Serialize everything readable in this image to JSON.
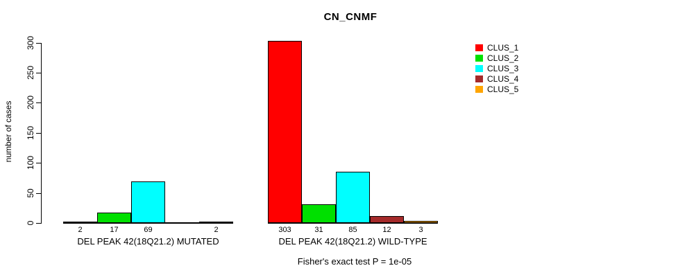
{
  "chart_data": {
    "type": "bar",
    "title": "CN_CNMF",
    "ylabel": "number of cases",
    "ylim": [
      0,
      300
    ],
    "yticks": [
      0,
      50,
      100,
      150,
      200,
      250,
      300
    ],
    "grid": false,
    "legend_position": "right",
    "clusters": [
      {
        "label": "CLUS_1",
        "color": "#ff0000"
      },
      {
        "label": "CLUS_2",
        "color": "#00e000"
      },
      {
        "label": "CLUS_3",
        "color": "#00ffff"
      },
      {
        "label": "CLUS_4",
        "color": "#a52a2a"
      },
      {
        "label": "CLUS_5",
        "color": "#ffa500"
      }
    ],
    "groups": [
      {
        "label": "DEL PEAK 42(18Q21.2) MUTATED",
        "values": [
          2,
          17,
          69,
          null,
          2
        ]
      },
      {
        "label": "DEL PEAK 42(18Q21.2) WILD-TYPE",
        "values": [
          303,
          31,
          85,
          12,
          3
        ]
      }
    ],
    "annotation": "Fisher's exact test P = 1e-05"
  }
}
